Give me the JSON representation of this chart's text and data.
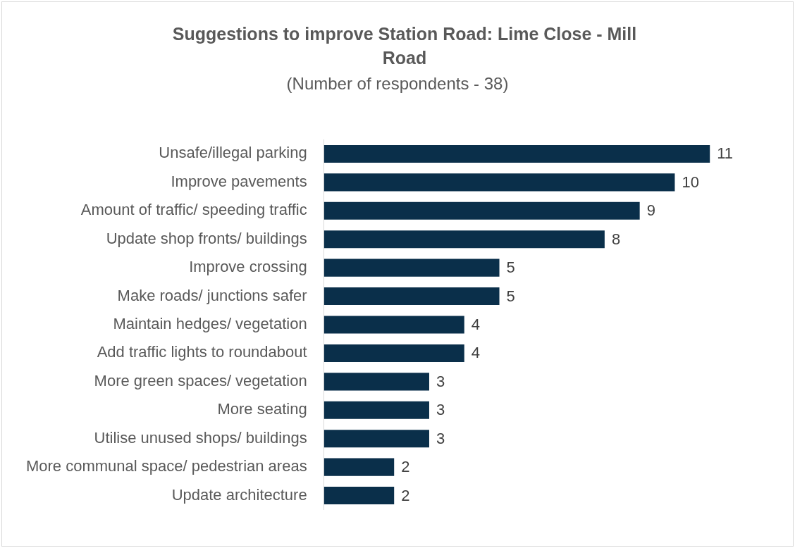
{
  "chart_data": {
    "type": "bar",
    "orientation": "horizontal",
    "title": "Suggestions to improve Station Road: Lime Close - Mill Road",
    "subtitle": "(Number of respondents - 38)",
    "categories": [
      "Unsafe/illegal parking",
      "Improve pavements",
      "Amount of traffic/ speeding traffic",
      "Update shop fronts/ buildings",
      "Improve crossing",
      "Make roads/ junctions safer",
      "Maintain hedges/ vegetation",
      "Add traffic lights to roundabout",
      "More green spaces/ vegetation",
      "More seating",
      "Utilise unused shops/ buildings",
      "More communal space/ pedestrian areas",
      "Update architecture"
    ],
    "values": [
      11,
      10,
      9,
      8,
      5,
      5,
      4,
      4,
      3,
      3,
      3,
      2,
      2
    ],
    "color": "#0a2f4a",
    "data_labels": true,
    "legend": false
  }
}
